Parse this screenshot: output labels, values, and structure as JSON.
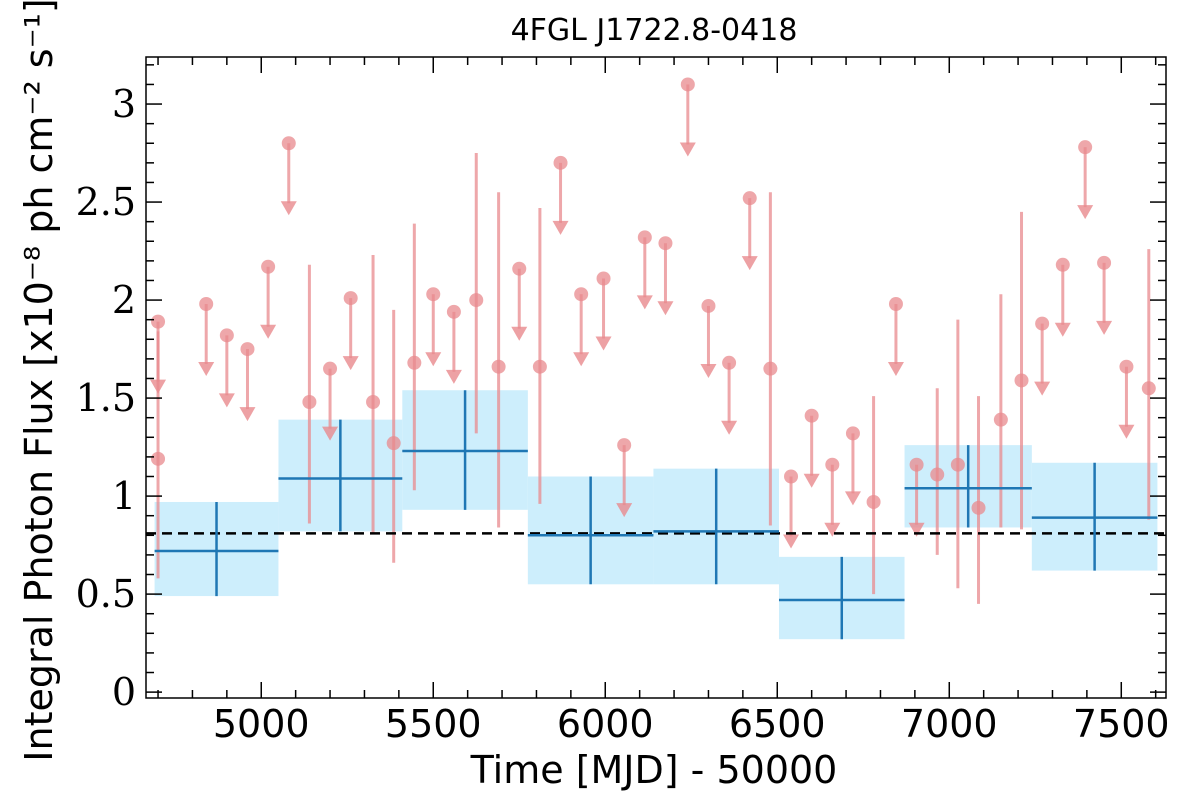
{
  "chart_data": {
    "type": "scatter",
    "title": "4FGL J1722.8-0418",
    "xlabel": "Time [MJD] - 50000",
    "ylabel": "Integral Photon Flux [x10⁻⁸ ph cm⁻² s⁻¹]",
    "xlim": [
      4665,
      7630
    ],
    "ylim": [
      -0.03,
      3.24
    ],
    "x_ticks": [
      5000,
      5500,
      6000,
      6500,
      7000,
      7500
    ],
    "y_ticks": [
      0,
      0.5,
      1,
      1.5,
      2,
      2.5,
      3
    ],
    "y_tick_labels": [
      "0",
      "0.5",
      "1",
      "1.5",
      "2",
      "2.5",
      "3"
    ],
    "grid": false,
    "reference_line": {
      "y": 0.81,
      "style": "dashed",
      "color": "#000000"
    },
    "colors": {
      "short": "#e88a8d",
      "long": "#1f77b4",
      "long_band": "#cdeefc"
    },
    "series": [
      {
        "binning": "short",
        "points": [
          {
            "x": 4700,
            "y": 1.19,
            "y_low": 0.58,
            "y_high": 1.84
          },
          {
            "x": 5140,
            "y": 1.48,
            "y_low": 0.86,
            "y_high": 2.18
          },
          {
            "x": 5325,
            "y": 1.48,
            "y_low": 0.81,
            "y_high": 2.23
          },
          {
            "x": 5385,
            "y": 1.27,
            "y_low": 0.66,
            "y_high": 1.95
          },
          {
            "x": 5445,
            "y": 1.68,
            "y_low": 1.03,
            "y_high": 2.39
          },
          {
            "x": 5625,
            "y": 2.0,
            "y_low": 1.32,
            "y_high": 2.75
          },
          {
            "x": 5690,
            "y": 1.66,
            "y_low": 0.84,
            "y_high": 2.55
          },
          {
            "x": 5810,
            "y": 1.66,
            "y_low": 0.96,
            "y_high": 2.47
          },
          {
            "x": 6480,
            "y": 1.65,
            "y_low": 0.85,
            "y_high": 2.55
          },
          {
            "x": 6780,
            "y": 0.97,
            "y_low": 0.5,
            "y_high": 1.51
          },
          {
            "x": 6965,
            "y": 1.11,
            "y_low": 0.7,
            "y_high": 1.55
          },
          {
            "x": 7025,
            "y": 1.16,
            "y_low": 0.53,
            "y_high": 1.9
          },
          {
            "x": 7085,
            "y": 0.94,
            "y_low": 0.45,
            "y_high": 1.51
          },
          {
            "x": 7150,
            "y": 1.39,
            "y_low": 0.84,
            "y_high": 2.03
          },
          {
            "x": 7210,
            "y": 1.59,
            "y_low": 0.83,
            "y_high": 2.45
          },
          {
            "x": 7580,
            "y": 1.55,
            "y_low": 0.88,
            "y_high": 2.26
          }
        ],
        "upper_limits": [
          {
            "x": 4700,
            "y": 1.89
          },
          {
            "x": 4840,
            "y": 1.98
          },
          {
            "x": 4900,
            "y": 1.82
          },
          {
            "x": 4960,
            "y": 1.75
          },
          {
            "x": 5020,
            "y": 2.17
          },
          {
            "x": 5080,
            "y": 2.8
          },
          {
            "x": 5200,
            "y": 1.65
          },
          {
            "x": 5260,
            "y": 2.01
          },
          {
            "x": 5500,
            "y": 2.03
          },
          {
            "x": 5560,
            "y": 1.94
          },
          {
            "x": 5750,
            "y": 2.16
          },
          {
            "x": 5870,
            "y": 2.7
          },
          {
            "x": 5930,
            "y": 2.03
          },
          {
            "x": 5995,
            "y": 2.11
          },
          {
            "x": 6055,
            "y": 1.26
          },
          {
            "x": 6115,
            "y": 2.32
          },
          {
            "x": 6175,
            "y": 2.29
          },
          {
            "x": 6240,
            "y": 3.1
          },
          {
            "x": 6300,
            "y": 1.97
          },
          {
            "x": 6360,
            "y": 1.68
          },
          {
            "x": 6420,
            "y": 2.52
          },
          {
            "x": 6540,
            "y": 1.1
          },
          {
            "x": 6600,
            "y": 1.41
          },
          {
            "x": 6660,
            "y": 1.16
          },
          {
            "x": 6720,
            "y": 1.32
          },
          {
            "x": 6845,
            "y": 1.98
          },
          {
            "x": 6905,
            "y": 1.16
          },
          {
            "x": 7270,
            "y": 1.88
          },
          {
            "x": 7330,
            "y": 2.18
          },
          {
            "x": 7395,
            "y": 2.78
          },
          {
            "x": 7450,
            "y": 2.19
          },
          {
            "x": 7515,
            "y": 1.66
          }
        ]
      },
      {
        "binning": "long",
        "bins": [
          {
            "x_start": 4690,
            "x_end": 5050,
            "y": 0.72,
            "y_low": 0.49,
            "y_high": 0.97
          },
          {
            "x_start": 5050,
            "x_end": 5410,
            "y": 1.09,
            "y_low": 0.82,
            "y_high": 1.39
          },
          {
            "x_start": 5410,
            "x_end": 5775,
            "y": 1.23,
            "y_low": 0.93,
            "y_high": 1.54
          },
          {
            "x_start": 5775,
            "x_end": 6140,
            "y": 0.8,
            "y_low": 0.55,
            "y_high": 1.1
          },
          {
            "x_start": 6140,
            "x_end": 6505,
            "y": 0.82,
            "y_low": 0.55,
            "y_high": 1.14
          },
          {
            "x_start": 6505,
            "x_end": 6870,
            "y": 0.47,
            "y_low": 0.27,
            "y_high": 0.69
          },
          {
            "x_start": 6870,
            "x_end": 7240,
            "y": 1.04,
            "y_low": 0.84,
            "y_high": 1.26
          },
          {
            "x_start": 7240,
            "x_end": 7605,
            "y": 0.89,
            "y_low": 0.62,
            "y_high": 1.17
          }
        ]
      }
    ]
  }
}
